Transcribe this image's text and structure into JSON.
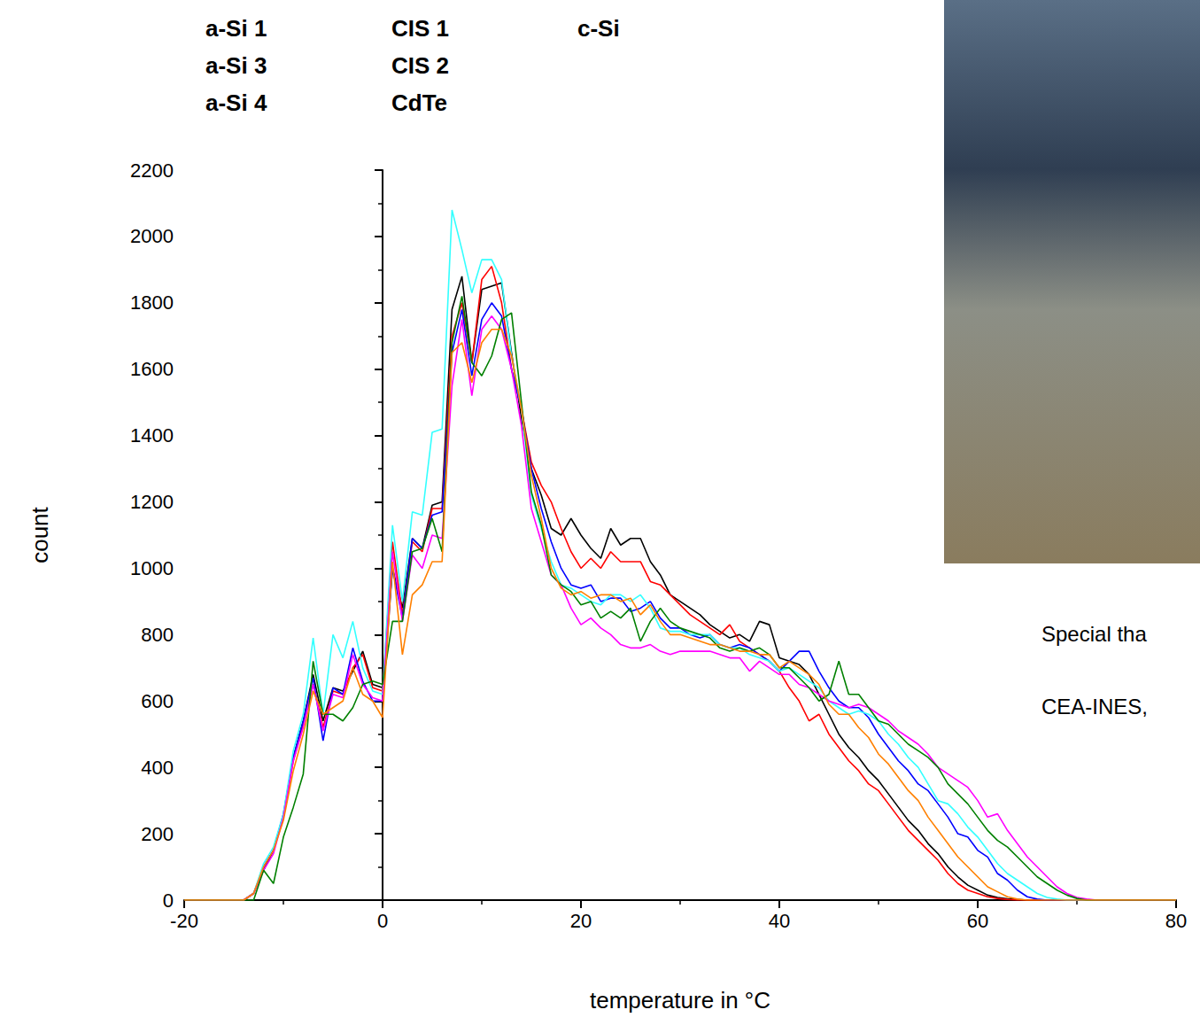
{
  "chart_data": {
    "type": "line",
    "x_label": "temperature in °C",
    "y_label": "count",
    "xlim": [
      -20,
      80
    ],
    "xticks": [
      -20,
      0,
      20,
      40,
      60,
      80
    ],
    "ylim": [
      0,
      2200
    ],
    "yticks": [
      0,
      200,
      400,
      600,
      800,
      1000,
      1200,
      1400,
      1600,
      1800,
      2000,
      2200
    ],
    "grid": false,
    "legend": "top-left",
    "annotations": [
      "Special tha",
      "CEA-INES,"
    ],
    "x": [
      -20,
      -19,
      -18,
      -17,
      -16,
      -15,
      -14,
      -13,
      -12,
      -11,
      -10,
      -9,
      -8,
      -7,
      -6,
      -5,
      -4,
      -3,
      -2,
      -1,
      0,
      1,
      2,
      3,
      4,
      5,
      6,
      7,
      8,
      9,
      10,
      11,
      12,
      13,
      14,
      15,
      16,
      17,
      18,
      19,
      20,
      21,
      22,
      23,
      24,
      25,
      26,
      27,
      28,
      29,
      30,
      31,
      32,
      33,
      34,
      35,
      36,
      37,
      38,
      39,
      40,
      41,
      42,
      43,
      44,
      45,
      46,
      47,
      48,
      49,
      50,
      51,
      52,
      53,
      54,
      55,
      56,
      57,
      58,
      59,
      60,
      61,
      62,
      63,
      64,
      65,
      66,
      67,
      68,
      69,
      70,
      71,
      72,
      73,
      74,
      75,
      76,
      77,
      78,
      79,
      80
    ],
    "series": [
      {
        "name": "a-Si 1",
        "color": "#000000",
        "values": [
          0,
          0,
          0,
          0,
          0,
          0,
          0,
          20,
          90,
          150,
          250,
          430,
          540,
          680,
          540,
          640,
          630,
          690,
          750,
          650,
          640,
          1000,
          880,
          1090,
          1060,
          1190,
          1200,
          1780,
          1880,
          1620,
          1840,
          1850,
          1860,
          1650,
          1450,
          1300,
          1220,
          1120,
          1100,
          1150,
          1100,
          1060,
          1030,
          1120,
          1070,
          1090,
          1090,
          1020,
          980,
          920,
          900,
          880,
          860,
          830,
          810,
          790,
          800,
          780,
          840,
          830,
          730,
          720,
          710,
          680,
          620,
          560,
          500,
          460,
          430,
          390,
          360,
          320,
          280,
          240,
          210,
          170,
          140,
          100,
          70,
          45,
          30,
          15,
          8,
          4,
          2,
          0,
          0,
          0,
          0,
          0,
          0,
          0,
          0,
          0,
          0,
          0,
          0,
          0,
          0,
          0,
          0
        ]
      },
      {
        "name": "a-Si 3",
        "color": "#ff0000",
        "values": [
          0,
          0,
          0,
          0,
          0,
          0,
          0,
          20,
          100,
          150,
          250,
          420,
          530,
          650,
          520,
          630,
          620,
          700,
          740,
          640,
          630,
          1080,
          860,
          1080,
          1050,
          1180,
          1180,
          1700,
          1800,
          1620,
          1870,
          1910,
          1800,
          1600,
          1480,
          1320,
          1250,
          1200,
          1120,
          1050,
          1000,
          1030,
          1000,
          1050,
          1020,
          1020,
          1020,
          960,
          950,
          920,
          890,
          860,
          840,
          820,
          800,
          830,
          780,
          760,
          740,
          720,
          690,
          640,
          600,
          540,
          560,
          500,
          460,
          420,
          390,
          350,
          330,
          290,
          250,
          210,
          180,
          150,
          120,
          80,
          50,
          30,
          20,
          10,
          5,
          2,
          0,
          0,
          0,
          0,
          0,
          0,
          0,
          0,
          0,
          0,
          0,
          0,
          0,
          0,
          0,
          0,
          0
        ]
      },
      {
        "name": "a-Si 4",
        "color": "#0000ff",
        "values": [
          0,
          0,
          0,
          0,
          0,
          0,
          0,
          20,
          100,
          150,
          260,
          430,
          540,
          670,
          480,
          640,
          620,
          760,
          660,
          600,
          600,
          1000,
          850,
          1090,
          1060,
          1160,
          1170,
          1650,
          1780,
          1580,
          1750,
          1800,
          1760,
          1600,
          1480,
          1300,
          1180,
          1080,
          1000,
          950,
          940,
          950,
          900,
          910,
          910,
          870,
          880,
          900,
          850,
          820,
          820,
          800,
          790,
          800,
          770,
          760,
          770,
          760,
          740,
          720,
          690,
          720,
          750,
          750,
          690,
          640,
          600,
          580,
          580,
          550,
          500,
          460,
          420,
          390,
          350,
          330,
          290,
          250,
          200,
          190,
          150,
          130,
          80,
          60,
          30,
          10,
          3,
          0,
          0,
          0,
          0,
          0,
          0,
          0,
          0,
          0,
          0,
          0,
          0,
          0,
          0
        ]
      },
      {
        "name": "CIS 1",
        "color": "#33ffff",
        "values": [
          0,
          0,
          0,
          0,
          0,
          0,
          0,
          20,
          110,
          160,
          260,
          450,
          560,
          790,
          560,
          800,
          730,
          840,
          700,
          630,
          620,
          1130,
          900,
          1170,
          1160,
          1410,
          1420,
          2080,
          1960,
          1830,
          1930,
          1930,
          1870,
          1640,
          1480,
          1220,
          1120,
          1020,
          950,
          940,
          920,
          900,
          890,
          920,
          920,
          900,
          920,
          880,
          820,
          810,
          810,
          800,
          800,
          800,
          770,
          760,
          760,
          740,
          730,
          720,
          690,
          700,
          680,
          660,
          640,
          600,
          580,
          560,
          570,
          560,
          540,
          500,
          470,
          430,
          400,
          350,
          300,
          290,
          260,
          220,
          190,
          150,
          110,
          80,
          60,
          40,
          20,
          8,
          3,
          0,
          0,
          0,
          0,
          0,
          0,
          0,
          0,
          0,
          0,
          0,
          0
        ]
      },
      {
        "name": "CIS 2",
        "color": "#ff00ff",
        "values": [
          0,
          0,
          0,
          0,
          0,
          0,
          0,
          20,
          90,
          140,
          250,
          420,
          520,
          650,
          510,
          620,
          610,
          740,
          650,
          610,
          600,
          1050,
          840,
          1040,
          1000,
          1100,
          1090,
          1550,
          1750,
          1520,
          1720,
          1760,
          1720,
          1600,
          1430,
          1180,
          1080,
          980,
          950,
          880,
          830,
          850,
          820,
          800,
          770,
          760,
          760,
          770,
          750,
          740,
          750,
          750,
          750,
          750,
          740,
          730,
          730,
          690,
          720,
          700,
          680,
          680,
          650,
          640,
          620,
          600,
          590,
          580,
          590,
          580,
          560,
          540,
          510,
          490,
          470,
          440,
          400,
          380,
          360,
          340,
          300,
          250,
          260,
          210,
          170,
          130,
          100,
          70,
          40,
          20,
          8,
          3,
          0,
          0,
          0,
          0,
          0,
          0,
          0,
          0,
          0
        ]
      },
      {
        "name": "CdTe",
        "color": "#008000",
        "values": [
          0,
          0,
          0,
          0,
          0,
          0,
          0,
          0,
          90,
          50,
          190,
          280,
          380,
          720,
          560,
          560,
          540,
          580,
          650,
          660,
          650,
          840,
          840,
          1050,
          1060,
          1150,
          1050,
          1680,
          1820,
          1620,
          1580,
          1640,
          1750,
          1770,
          1500,
          1230,
          1130,
          980,
          950,
          930,
          890,
          900,
          850,
          870,
          850,
          880,
          780,
          840,
          880,
          840,
          820,
          810,
          800,
          790,
          760,
          750,
          760,
          750,
          760,
          740,
          700,
          700,
          670,
          640,
          600,
          620,
          720,
          620,
          620,
          580,
          540,
          530,
          500,
          470,
          450,
          430,
          400,
          350,
          320,
          290,
          250,
          210,
          180,
          160,
          130,
          100,
          70,
          50,
          30,
          15,
          5,
          0,
          0,
          0,
          0,
          0,
          0,
          0,
          0,
          0,
          0
        ]
      },
      {
        "name": "c-Si",
        "color": "#ff8000",
        "values": [
          0,
          0,
          0,
          0,
          0,
          0,
          0,
          20,
          100,
          150,
          240,
          390,
          500,
          630,
          560,
          580,
          600,
          700,
          620,
          600,
          550,
          1020,
          740,
          920,
          950,
          1020,
          1020,
          1650,
          1680,
          1560,
          1680,
          1720,
          1720,
          1640,
          1480,
          1280,
          1150,
          1000,
          940,
          920,
          930,
          910,
          920,
          920,
          900,
          910,
          860,
          890,
          840,
          800,
          800,
          790,
          780,
          770,
          770,
          760,
          750,
          750,
          740,
          740,
          700,
          720,
          700,
          680,
          650,
          590,
          560,
          560,
          520,
          490,
          440,
          410,
          370,
          330,
          300,
          250,
          210,
          170,
          130,
          100,
          70,
          40,
          25,
          10,
          3,
          0,
          0,
          0,
          0,
          0,
          0,
          0,
          0,
          0,
          0,
          0,
          0,
          0,
          0,
          0,
          0
        ]
      }
    ]
  }
}
